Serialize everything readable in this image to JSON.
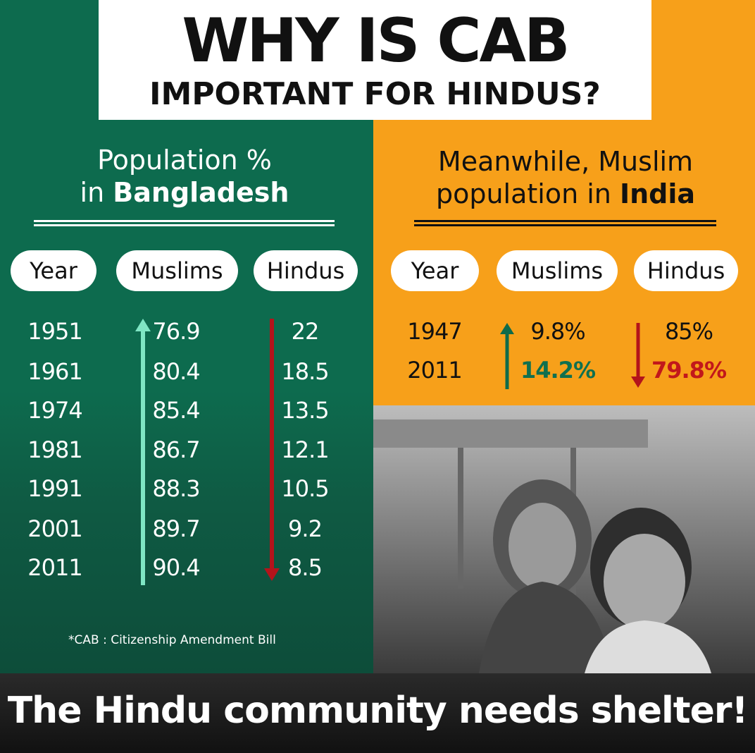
{
  "header": {
    "title": "WHY IS CAB",
    "subtitle": "IMPORTANT FOR HINDUS?"
  },
  "left": {
    "heading_line1": "Population %",
    "heading_prefix": "in",
    "heading_bold": "Bangladesh",
    "columns": [
      "Year",
      "Muslims",
      "Hindus"
    ],
    "rows": [
      [
        "1951",
        "76.9",
        "22"
      ],
      [
        "1961",
        "80.4",
        "18.5"
      ],
      [
        "1974",
        "85.4",
        "13.5"
      ],
      [
        "1981",
        "86.7",
        "12.1"
      ],
      [
        "1991",
        "88.3",
        "10.5"
      ],
      [
        "2001",
        "89.7",
        "9.2"
      ],
      [
        "2011",
        "90.4",
        "8.5"
      ]
    ],
    "footnote": "*CAB : Citizenship Amendment Bill"
  },
  "right": {
    "heading_line1": "Meanwhile, Muslim",
    "heading_prefix": "population in",
    "heading_bold": "India",
    "columns": [
      "Year",
      "Muslims",
      "Hindus"
    ],
    "rows": [
      [
        "1947",
        "9.8%",
        "85%"
      ],
      [
        "2011",
        "14.2%",
        "79.8%"
      ]
    ]
  },
  "footer": {
    "text": "The Hindu community needs shelter!"
  }
}
